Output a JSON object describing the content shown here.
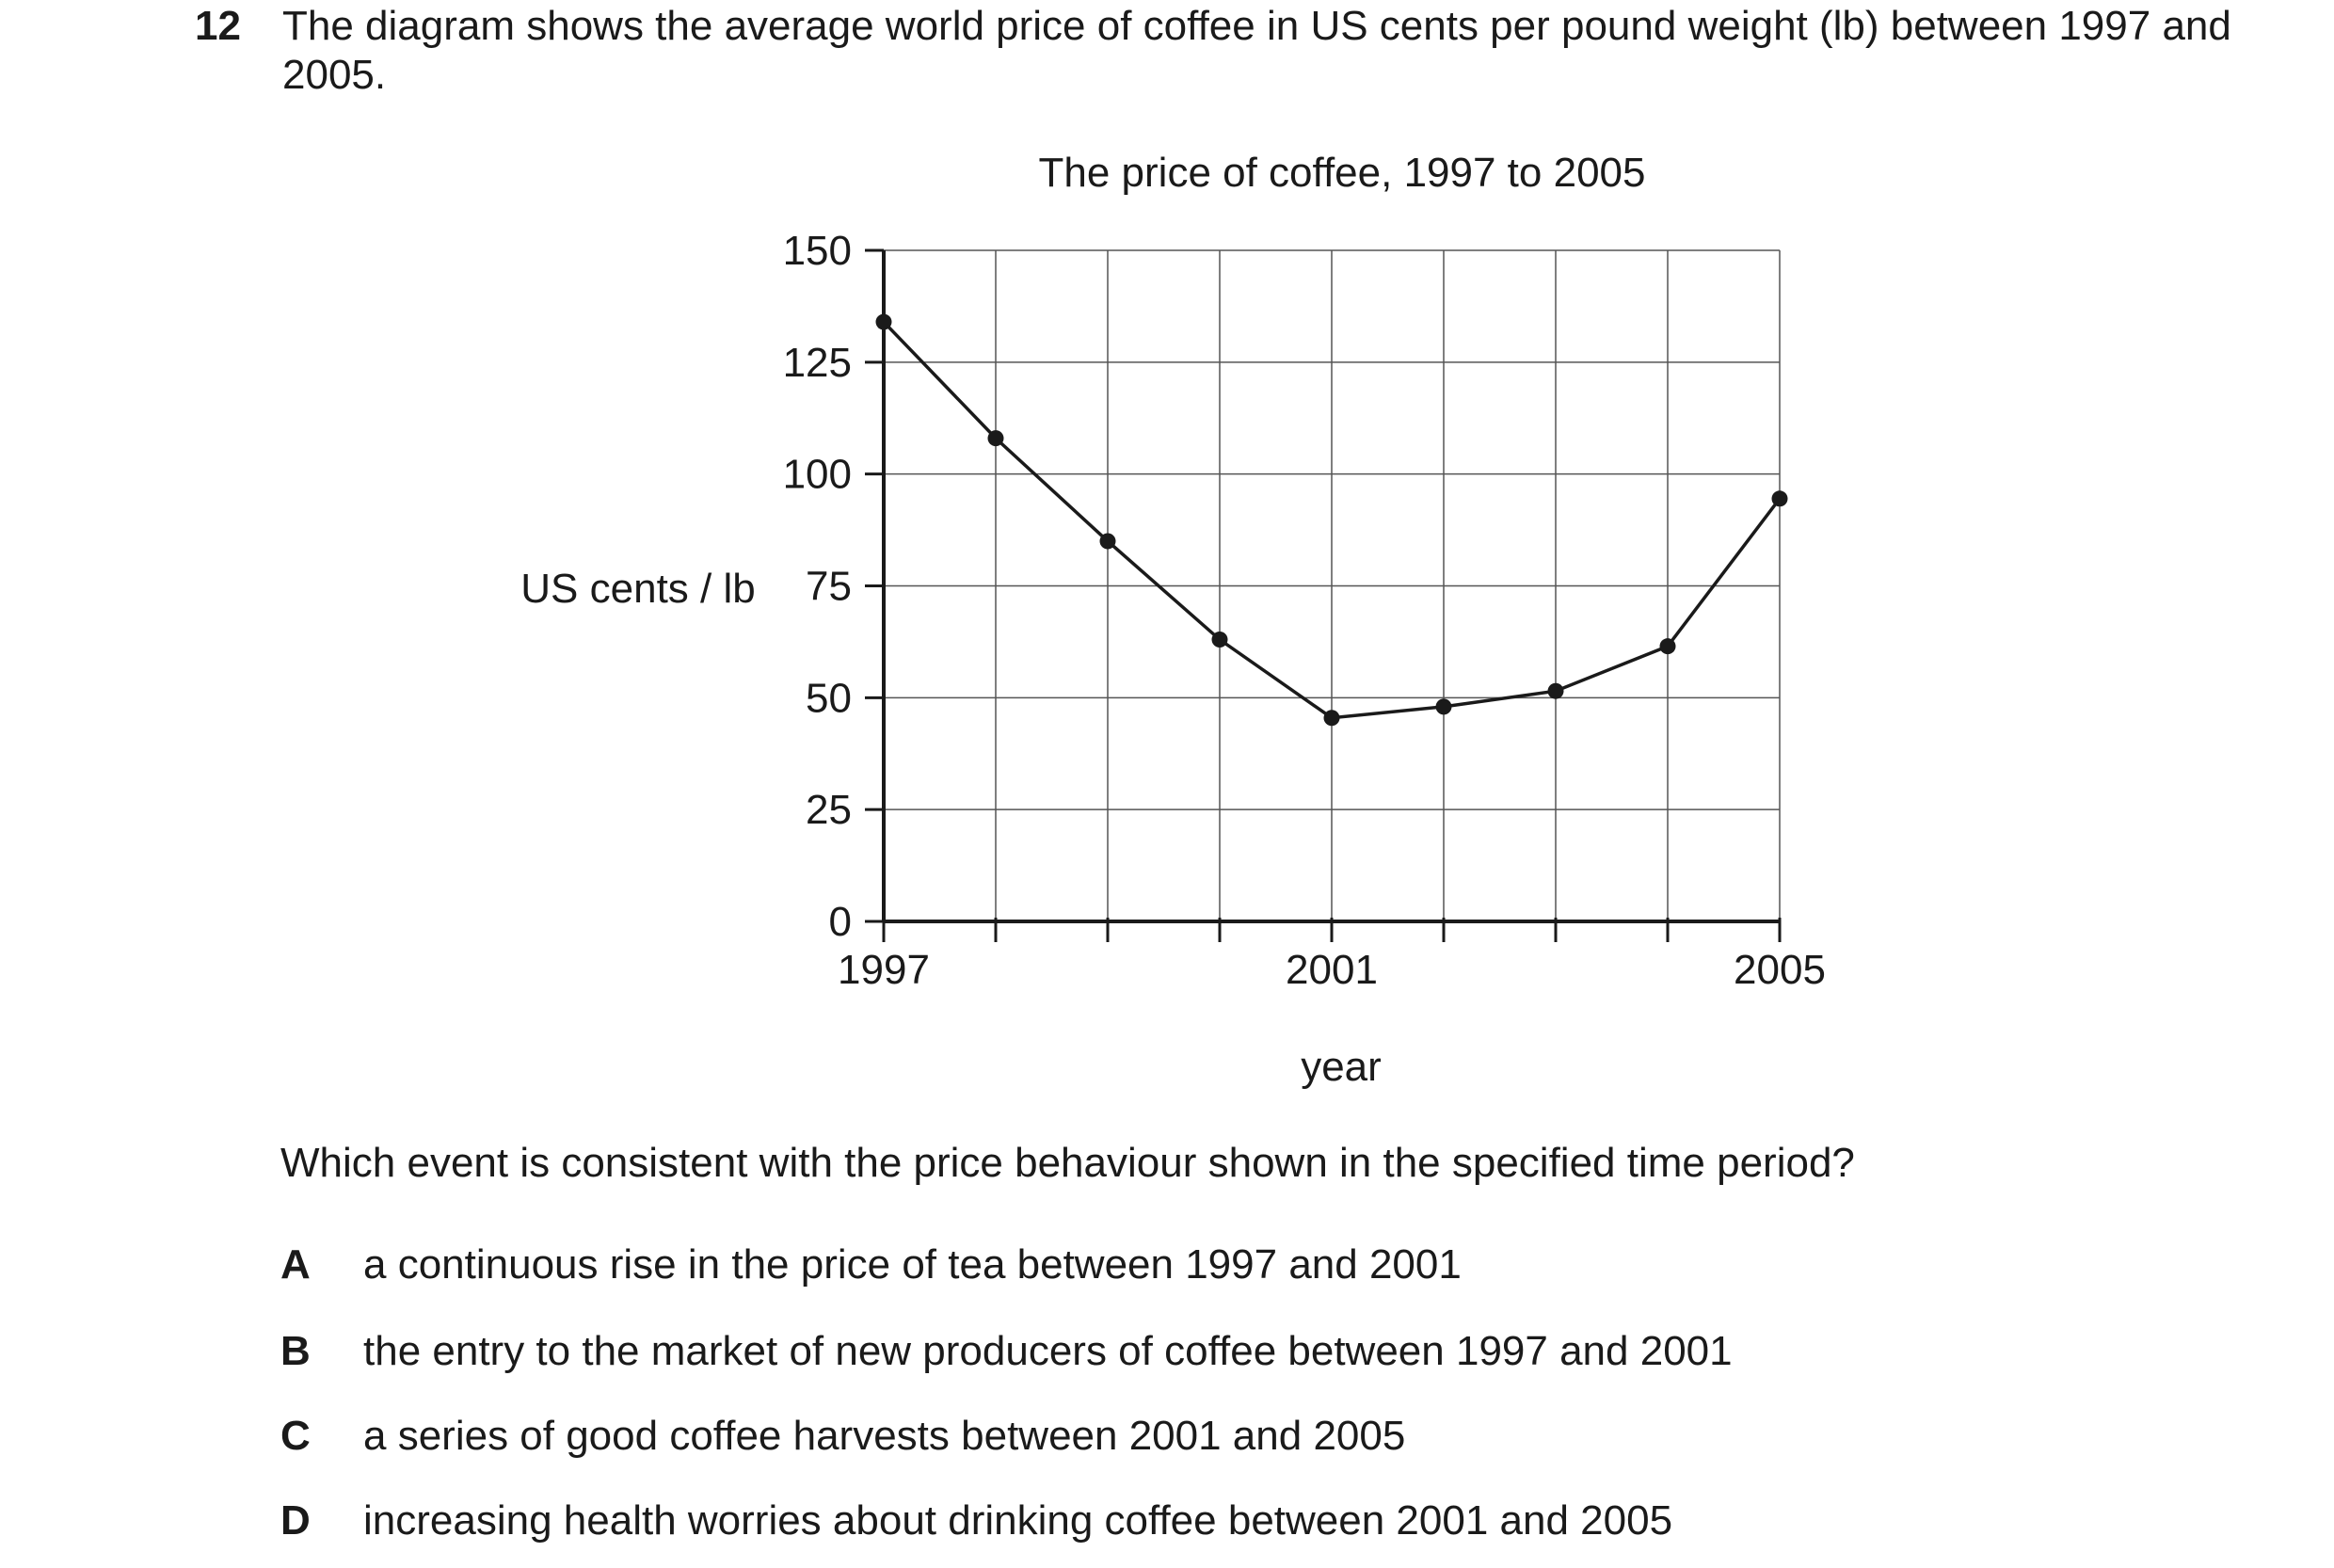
{
  "question": {
    "number": "12",
    "text": "The diagram shows the average world price of coffee in US cents per pound weight (lb) between 1997 and 2005."
  },
  "chart_data": {
    "type": "line",
    "title": "The price of coffee, 1997 to 2005",
    "xlabel": "year",
    "ylabel": "US cents / lb",
    "x": [
      1997,
      1998,
      1999,
      2000,
      2001,
      2002,
      2003,
      2004,
      2005
    ],
    "xticks": [
      1997,
      1998,
      1999,
      2000,
      2001,
      2002,
      2003,
      2004,
      2005
    ],
    "xtick_labels": [
      "1997",
      "",
      "",
      "",
      "2001",
      "",
      "",
      "",
      "2005"
    ],
    "yticks": [
      0,
      25,
      50,
      75,
      100,
      125,
      150
    ],
    "ylim": [
      0,
      150
    ],
    "xlim": [
      1997,
      2005
    ],
    "grid": true,
    "series": [
      {
        "values": [
          134,
          108,
          85,
          63,
          45.5,
          48,
          51.5,
          61.5,
          94.5
        ]
      }
    ]
  },
  "prompt": "Which event is consistent with the price behaviour shown in the specified time period?",
  "options": [
    {
      "letter": "A",
      "text": "a continuous rise in the price of tea between 1997 and 2001"
    },
    {
      "letter": "B",
      "text": "the entry to the market of new producers of coffee between 1997 and 2001"
    },
    {
      "letter": "C",
      "text": "a series of good coffee harvests between 2001 and 2005"
    },
    {
      "letter": "D",
      "text": "increasing health worries about drinking coffee between 2001 and 2005"
    }
  ]
}
